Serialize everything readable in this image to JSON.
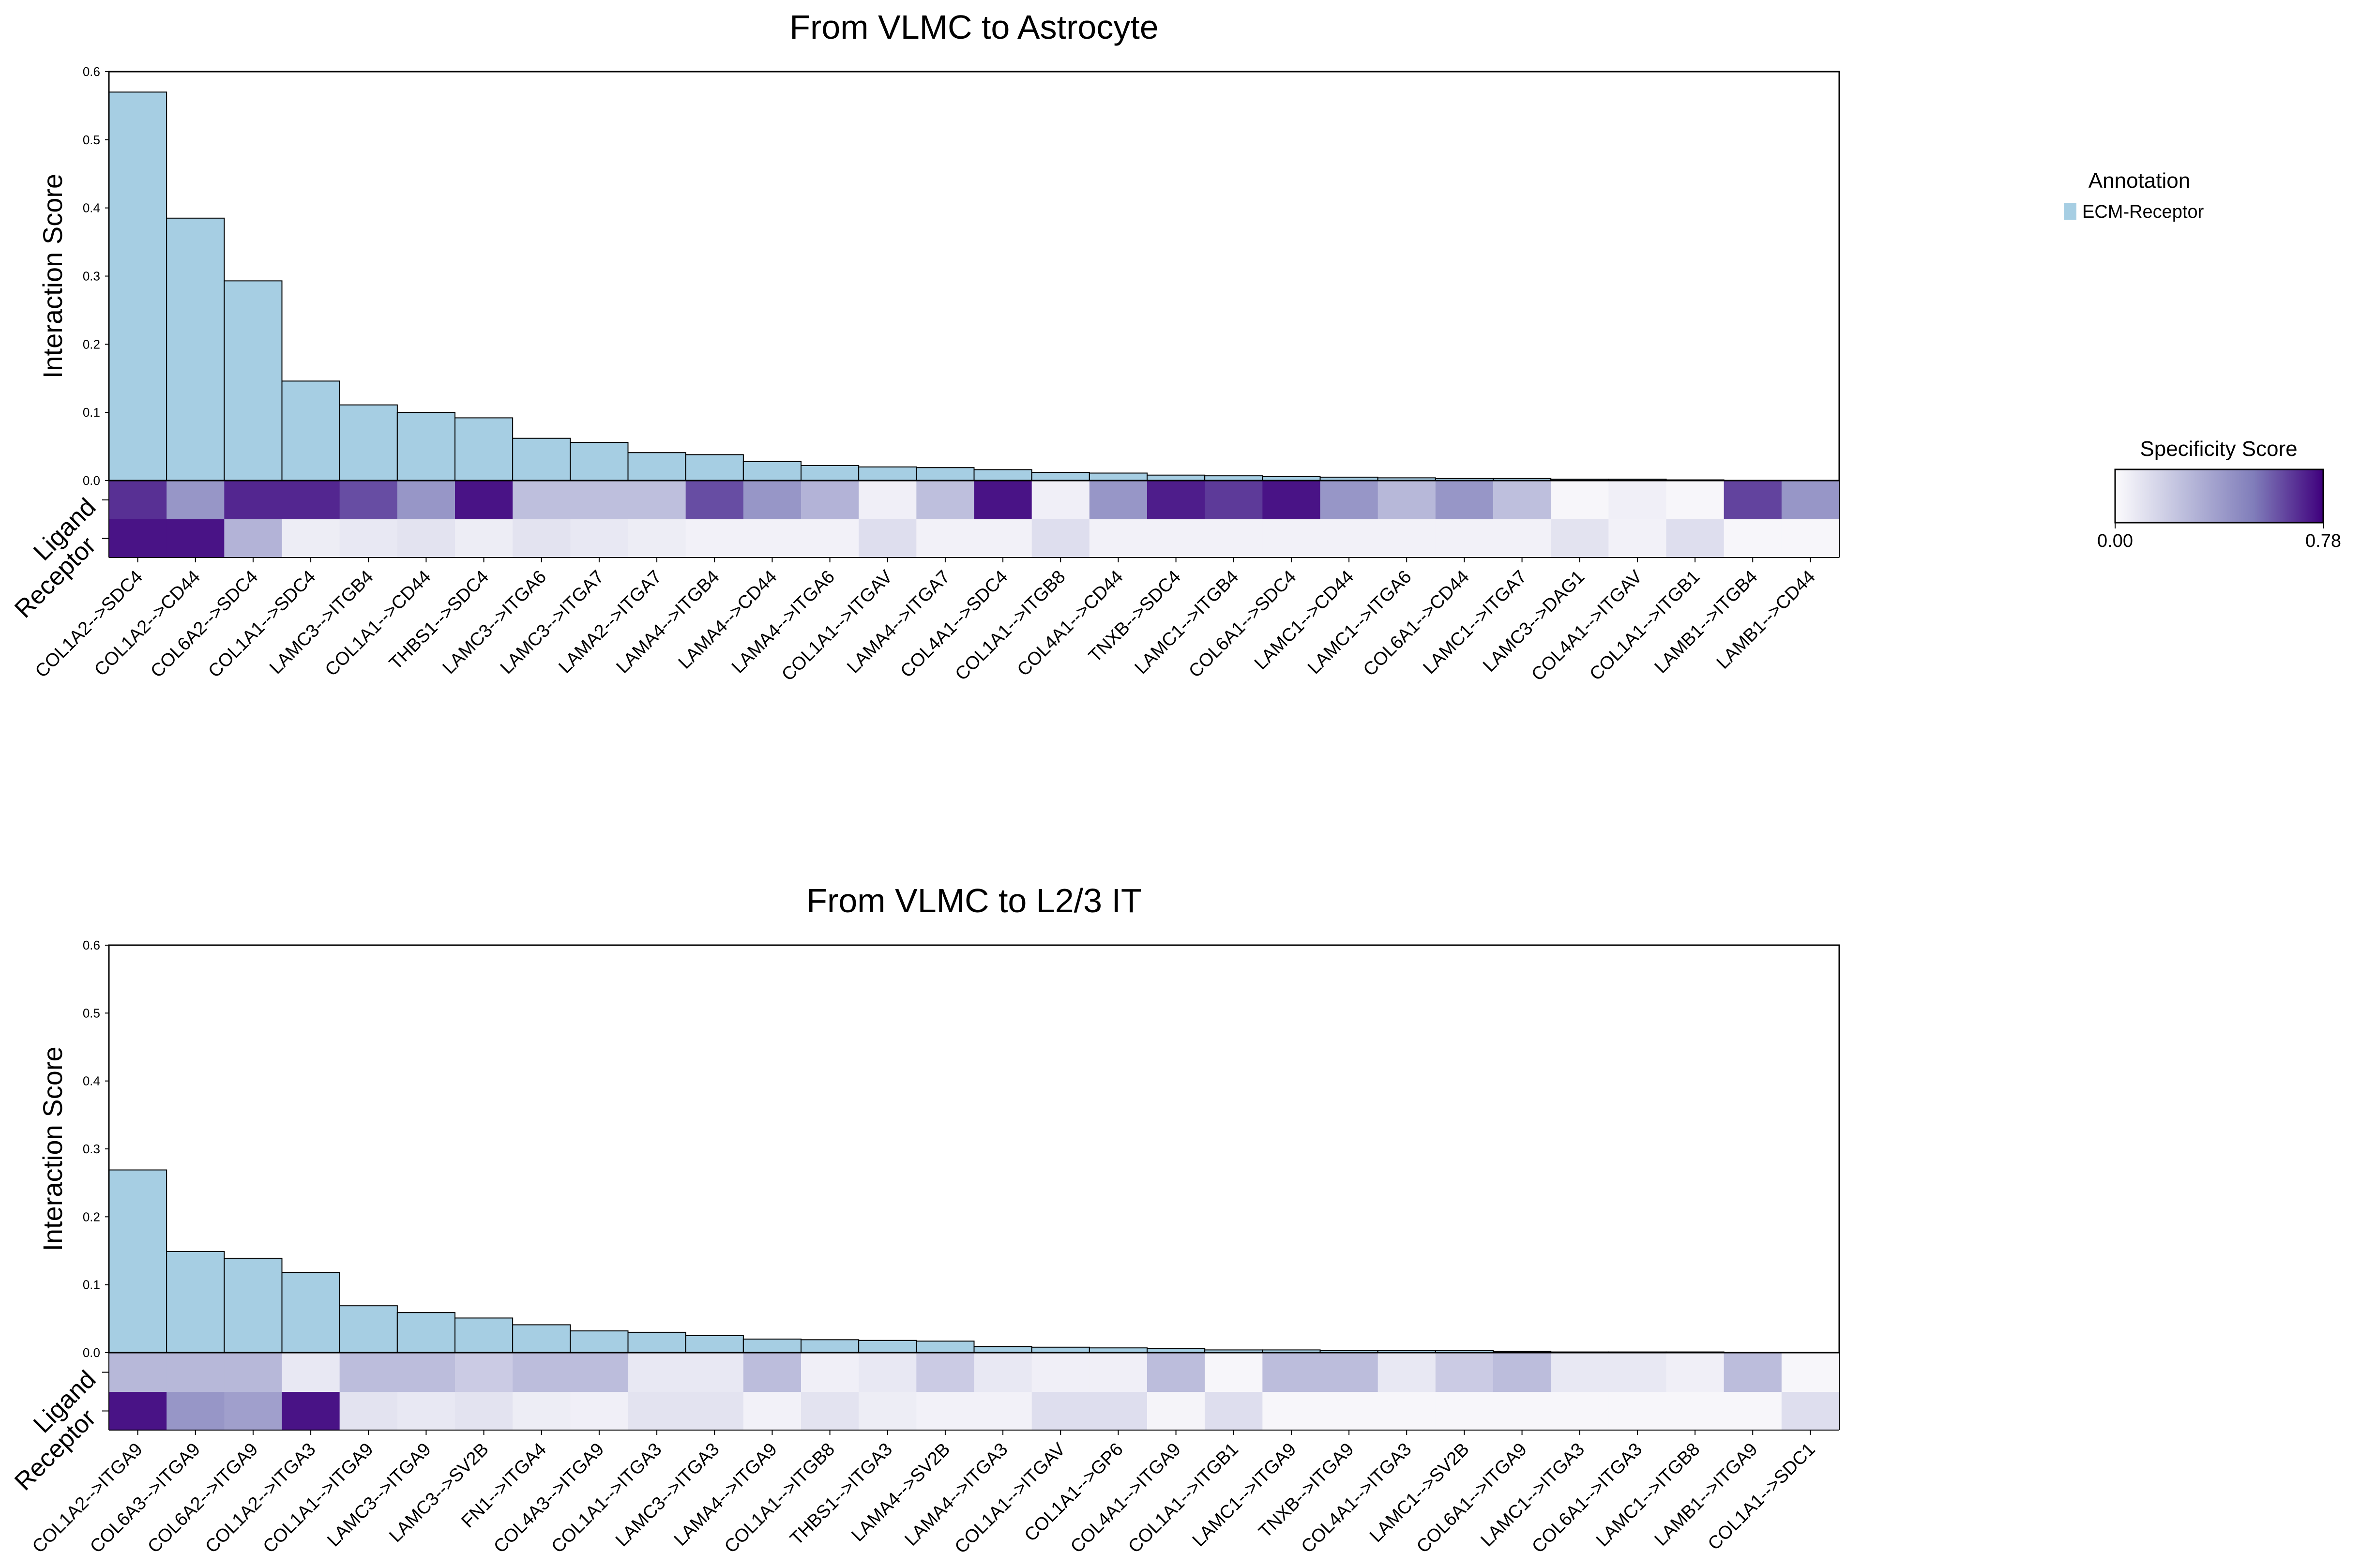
{
  "legend": {
    "title": "Annotation",
    "items": [
      {
        "label": "ECM-Receptor",
        "color": "#a6cee3"
      }
    ]
  },
  "colorbar": {
    "title": "Specificity Score",
    "min_label": "0.00",
    "max_label": "0.78",
    "min": 0,
    "max": 0.78,
    "colors": [
      "#fcfbfd",
      "#bcbddc",
      "#807dba",
      "#3f007d"
    ]
  },
  "chart_data": [
    {
      "type": "bar",
      "title": "From VLMC to Astrocyte",
      "ylabel": "Interaction Score",
      "row_labels": [
        "Ligand",
        "Receptor"
      ],
      "ylim": [
        0,
        0.6
      ],
      "yticks": [
        "0.0",
        "0.1",
        "0.2",
        "0.3",
        "0.4",
        "0.5",
        "0.6"
      ],
      "categories": [
        "COL1A2-->SDC4",
        "COL1A2-->CD44",
        "COL6A2-->SDC4",
        "COL1A1-->SDC4",
        "LAMC3-->ITGB4",
        "COL1A1-->CD44",
        "THBS1-->SDC4",
        "LAMC3-->ITGA6",
        "LAMC3-->ITGA7",
        "LAMA2-->ITGA7",
        "LAMA4-->ITGB4",
        "LAMA4-->CD44",
        "LAMA4-->ITGA6",
        "COL1A1-->ITGAV",
        "LAMA4-->ITGA7",
        "COL4A1-->SDC4",
        "COL1A1-->ITGB8",
        "COL4A1-->CD44",
        "TNXB-->SDC4",
        "LAMC1-->ITGB4",
        "COL6A1-->SDC4",
        "LAMC1-->CD44",
        "LAMC1-->ITGA6",
        "COL6A1-->CD44",
        "LAMC1-->ITGA7",
        "LAMC3-->DAG1",
        "COL4A1-->ITGAV",
        "COL1A1-->ITGB1",
        "LAMB1-->ITGB4",
        "LAMB1-->CD44"
      ],
      "values": [
        0.57,
        0.385,
        0.293,
        0.146,
        0.111,
        0.1,
        0.092,
        0.062,
        0.056,
        0.041,
        0.038,
        0.028,
        0.022,
        0.02,
        0.019,
        0.016,
        0.012,
        0.011,
        0.008,
        0.007,
        0.006,
        0.005,
        0.004,
        0.003,
        0.003,
        0.002,
        0.002,
        0.001,
        0.0,
        0.0
      ],
      "ligand_specificity": [
        0.68,
        0.42,
        0.7,
        0.7,
        0.62,
        0.42,
        0.74,
        0.25,
        0.25,
        0.25,
        0.62,
        0.42,
        0.3,
        0.05,
        0.25,
        0.74,
        0.05,
        0.42,
        0.72,
        0.66,
        0.74,
        0.42,
        0.28,
        0.42,
        0.25,
        0.02,
        0.05,
        0.02,
        0.64,
        0.42
      ],
      "receptor_specificity": [
        0.74,
        0.74,
        0.3,
        0.06,
        0.08,
        0.1,
        0.06,
        0.1,
        0.08,
        0.06,
        0.04,
        0.04,
        0.04,
        0.12,
        0.04,
        0.04,
        0.12,
        0.04,
        0.04,
        0.04,
        0.04,
        0.04,
        0.04,
        0.04,
        0.04,
        0.1,
        0.04,
        0.12,
        0.02,
        0.02
      ]
    },
    {
      "type": "bar",
      "title": "From VLMC to L2/3 IT",
      "ylabel": "Interaction Score",
      "row_labels": [
        "Ligand",
        "Receptor"
      ],
      "ylim": [
        0,
        0.6
      ],
      "yticks": [
        "0.0",
        "0.1",
        "0.2",
        "0.3",
        "0.4",
        "0.5",
        "0.6"
      ],
      "categories": [
        "COL1A2-->ITGA9",
        "COL6A3-->ITGA9",
        "COL6A2-->ITGA9",
        "COL1A2-->ITGA3",
        "COL1A1-->ITGA9",
        "LAMC3-->ITGA9",
        "LAMC3-->SV2B",
        "FN1-->ITGA4",
        "COL4A3-->ITGA9",
        "COL1A1-->ITGA3",
        "LAMC3-->ITGA3",
        "LAMA4-->ITGA9",
        "COL1A1-->ITGB8",
        "THBS1-->ITGA3",
        "LAMA4-->SV2B",
        "LAMA4-->ITGA3",
        "COL1A1-->ITGAV",
        "COL1A1-->GP6",
        "COL4A1-->ITGA9",
        "COL1A1-->ITGB1",
        "LAMC1-->ITGA9",
        "TNXB-->ITGA9",
        "COL4A1-->ITGA3",
        "LAMC1-->SV2B",
        "COL6A1-->ITGA9",
        "LAMC1-->ITGA3",
        "COL6A1-->ITGA3",
        "LAMC1-->ITGB8",
        "LAMB1-->ITGA9",
        "COL1A1-->SDC1"
      ],
      "values": [
        0.269,
        0.149,
        0.139,
        0.118,
        0.069,
        0.059,
        0.051,
        0.041,
        0.032,
        0.03,
        0.025,
        0.02,
        0.019,
        0.018,
        0.017,
        0.009,
        0.008,
        0.007,
        0.006,
        0.004,
        0.004,
        0.003,
        0.003,
        0.003,
        0.002,
        0.001,
        0.001,
        0.001,
        0.0,
        0.0
      ],
      "ligand_specificity": [
        0.28,
        0.28,
        0.28,
        0.08,
        0.26,
        0.26,
        0.2,
        0.26,
        0.26,
        0.08,
        0.08,
        0.26,
        0.05,
        0.08,
        0.2,
        0.08,
        0.05,
        0.05,
        0.26,
        0.02,
        0.26,
        0.26,
        0.08,
        0.2,
        0.26,
        0.08,
        0.08,
        0.05,
        0.26,
        0.02
      ],
      "receptor_specificity": [
        0.74,
        0.42,
        0.38,
        0.74,
        0.1,
        0.08,
        0.1,
        0.06,
        0.05,
        0.1,
        0.1,
        0.04,
        0.1,
        0.06,
        0.04,
        0.04,
        0.12,
        0.12,
        0.03,
        0.12,
        0.02,
        0.02,
        0.02,
        0.02,
        0.02,
        0.02,
        0.02,
        0.02,
        0.02,
        0.12
      ]
    }
  ]
}
